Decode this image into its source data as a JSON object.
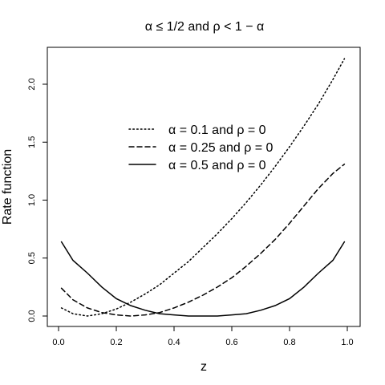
{
  "chart_data": {
    "type": "line",
    "title": "α ≤ 1/2 and ρ < 1 − α",
    "xlabel": "z",
    "ylabel": "Rate function",
    "xlim": [
      0.0,
      1.0
    ],
    "ylim": [
      0.0,
      2.2
    ],
    "x_ticks": [
      "0.0",
      "0.2",
      "0.4",
      "0.6",
      "0.8",
      "1.0"
    ],
    "y_ticks": [
      "0.0",
      "0.5",
      "1.0",
      "1.5",
      "2.0"
    ],
    "grid": false,
    "legend_position": "center",
    "x": [
      0.01,
      0.05,
      0.1,
      0.15,
      0.2,
      0.25,
      0.3,
      0.35,
      0.4,
      0.45,
      0.5,
      0.55,
      0.6,
      0.65,
      0.7,
      0.75,
      0.8,
      0.85,
      0.9,
      0.95,
      0.99
    ],
    "series": [
      {
        "name": "α = 0.1 and ρ = 0",
        "dash": "dotted",
        "values": [
          0.07,
          0.02,
          0.0,
          0.02,
          0.06,
          0.12,
          0.19,
          0.27,
          0.37,
          0.47,
          0.59,
          0.71,
          0.84,
          0.98,
          1.13,
          1.29,
          1.46,
          1.64,
          1.83,
          2.04,
          2.22
        ]
      },
      {
        "name": "α = 0.25 and ρ = 0",
        "dash": "dashed",
        "values": [
          0.24,
          0.14,
          0.07,
          0.03,
          0.01,
          0.0,
          0.01,
          0.03,
          0.07,
          0.12,
          0.18,
          0.25,
          0.33,
          0.43,
          0.54,
          0.66,
          0.8,
          0.95,
          1.1,
          1.23,
          1.31
        ]
      },
      {
        "name": "α = 0.5 and ρ = 0",
        "dash": "solid",
        "values": [
          0.64,
          0.48,
          0.37,
          0.25,
          0.15,
          0.09,
          0.05,
          0.02,
          0.01,
          0.0,
          0.0,
          0.0,
          0.01,
          0.02,
          0.05,
          0.09,
          0.15,
          0.25,
          0.37,
          0.48,
          0.64
        ]
      }
    ]
  }
}
